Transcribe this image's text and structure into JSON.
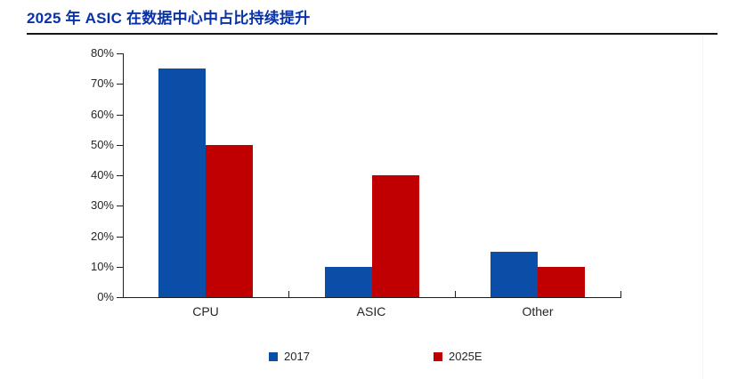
{
  "page": {
    "title": "2025 年 ASIC 在数据中心中占比持续提升"
  },
  "colors": {
    "title_text": "#0832A8",
    "divider": "#16161C",
    "axis": "#1F1F1F",
    "label_text": "#262626",
    "series_2017": "#0B4EA8",
    "series_2025e": "#C00000",
    "background": "#FFFFFF"
  },
  "chart_data": {
    "type": "bar",
    "title": "2025 年 ASIC 在数据中心中占比持续提升",
    "categories": [
      "CPU",
      "ASIC",
      "Other"
    ],
    "series": [
      {
        "name": "2017",
        "color": "#0B4EA8",
        "values": [
          75,
          10,
          15
        ]
      },
      {
        "name": "2025E",
        "color": "#C00000",
        "values": [
          50,
          40,
          10
        ]
      }
    ],
    "xlabel": "",
    "ylabel": "",
    "unit": "%",
    "ylim": [
      0,
      80
    ],
    "ytick_step": 10,
    "ytick_labels": [
      "0%",
      "10%",
      "20%",
      "30%",
      "40%",
      "50%",
      "60%",
      "70%",
      "80%"
    ],
    "grid": false,
    "legend_position": "bottom"
  }
}
